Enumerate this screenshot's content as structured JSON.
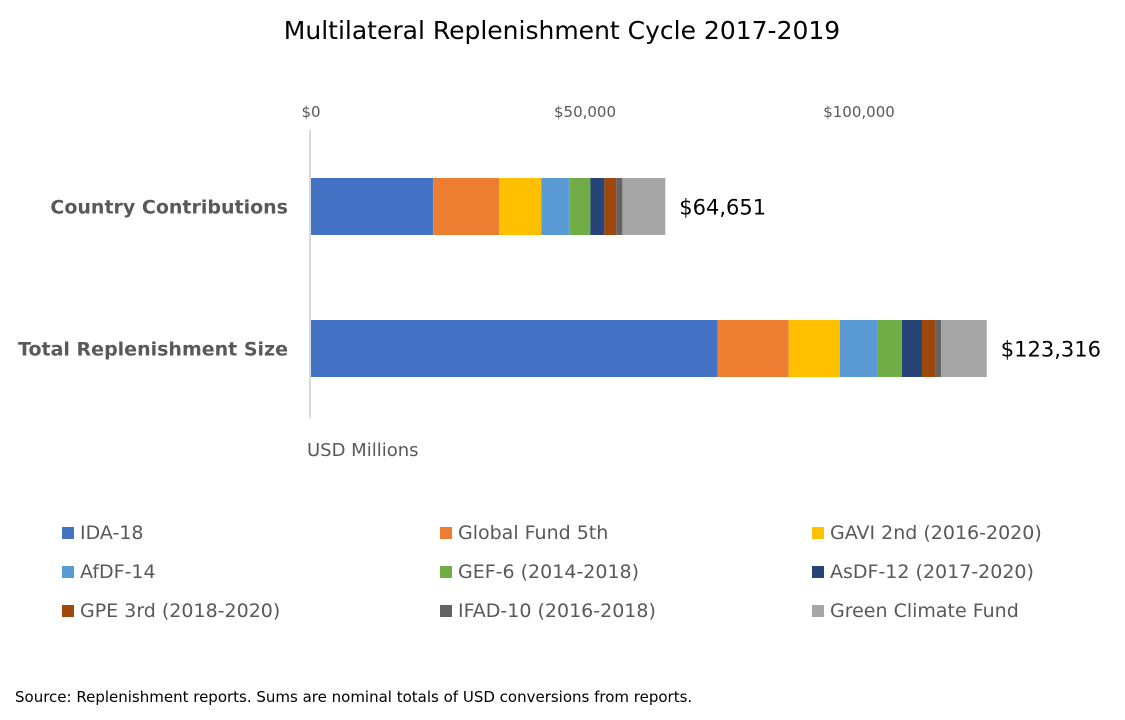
{
  "chart_data": {
    "type": "bar",
    "orientation": "horizontal",
    "stacked": true,
    "title": "Multilateral Replenishment Cycle 2017-2019",
    "xlabel": "USD Millions",
    "xlim": [
      0,
      120000
    ],
    "x_ticks": [
      0,
      50000,
      100000
    ],
    "x_tick_labels": [
      "$0",
      "$50,000",
      "$100,000"
    ],
    "x_axis_position": "top",
    "grid": false,
    "legend_position": "bottom",
    "categories": [
      "Country Contributions",
      "Total Replenishment Size"
    ],
    "totals_labels": [
      "$64,651",
      "$123,316"
    ],
    "series": [
      {
        "name": "IDA-18",
        "color": "#4472C4",
        "values": [
          22300,
          74200
        ]
      },
      {
        "name": "Global Fund 5th",
        "color": "#ED7D31",
        "values": [
          12050,
          12980
        ]
      },
      {
        "name": "GAVI 2nd (2016-2020)",
        "color": "#FFC000",
        "values": [
          7670,
          9320
        ]
      },
      {
        "name": "AfDF-14",
        "color": "#5B9BD5",
        "values": [
          5110,
          6950
        ]
      },
      {
        "name": "GEF-6 (2014-2018)",
        "color": "#70AD47",
        "values": [
          3840,
          4390
        ]
      },
      {
        "name": "AsDF-12 (2017-2020)",
        "color": "#264478",
        "values": [
          2560,
          3660
        ]
      },
      {
        "name": "GPE 3rd (2018-2020)",
        "color": "#9E480E",
        "values": [
          2190,
          2380
        ]
      },
      {
        "name": "IFAD-10 (2016-2018)",
        "color": "#636363",
        "values": [
          1100,
          1100
        ]
      },
      {
        "name": "Green Climate Fund",
        "color": "#A5A5A5",
        "values": [
          7831,
          8336
        ]
      }
    ]
  },
  "source_note": "Source: Replenishment reports. Sums are nominal totals of USD conversions from reports."
}
